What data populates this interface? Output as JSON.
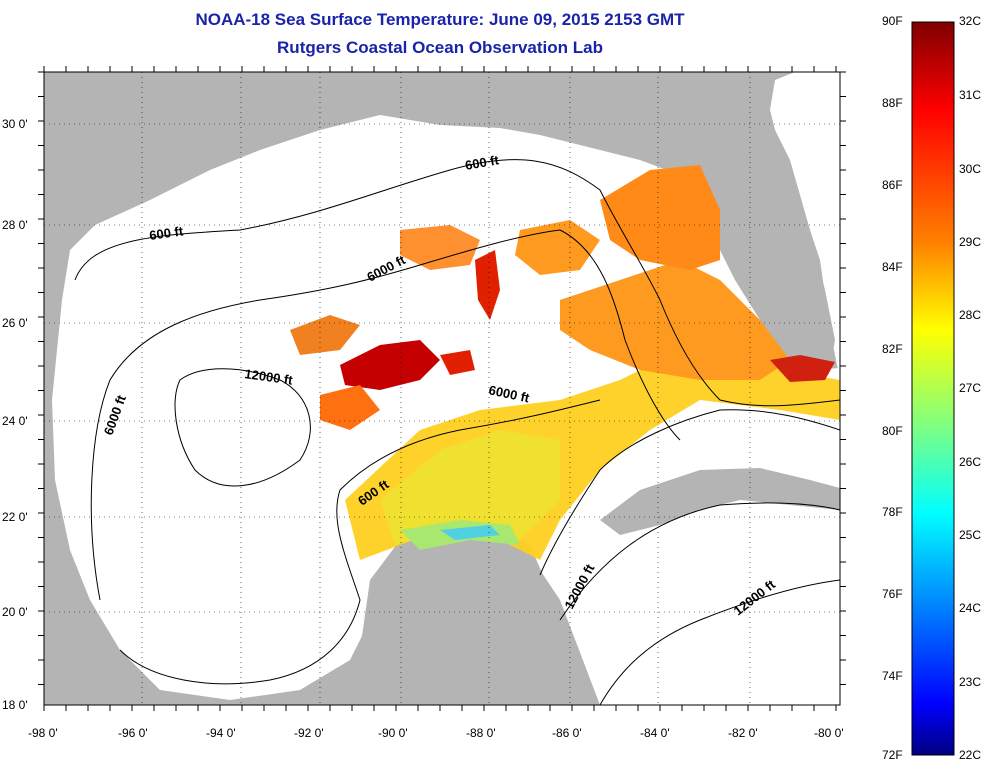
{
  "title": "NOAA-18 Sea Surface Temperature:  June 09, 2015 2153 GMT",
  "subtitle": "Rutgers Coastal Ocean Observation Lab",
  "map": {
    "lat_labels": [
      "30 0'",
      "28 0'",
      "26 0'",
      "24 0'",
      "22 0'",
      "20 0'",
      "18 0'"
    ],
    "lon_labels": [
      "-98 0'",
      "-96 0'",
      "-94 0'",
      "-92 0'",
      "-90 0'",
      "-88 0'",
      "-86 0'",
      "-84 0'",
      "-82 0'",
      "-80 0'"
    ],
    "depth_labels": [
      "600 ft",
      "600 ft",
      "6000 ft",
      "6000 ft",
      "12000 ft",
      "6000 ft",
      "600 ft",
      "12000 ft",
      "12000 ft"
    ],
    "colors": {
      "land": "#b4b4b4",
      "no_data": "#ffffff",
      "contour": "#000000",
      "title": "#1a24a8"
    }
  },
  "colorbar": {
    "fahrenheit": [
      "90F",
      "88F",
      "86F",
      "84F",
      "82F",
      "80F",
      "78F",
      "76F",
      "74F",
      "72F"
    ],
    "celsius": [
      "32C",
      "31C",
      "30C",
      "29C",
      "28C",
      "27C",
      "26C",
      "25C",
      "24C",
      "23C",
      "22C"
    ],
    "colors_top_to_bottom": [
      "#7f0000",
      "#ff0000",
      "#ff8000",
      "#ffff00",
      "#80ff80",
      "#00ffff",
      "#0080ff",
      "#0000ff",
      "#000080"
    ]
  }
}
